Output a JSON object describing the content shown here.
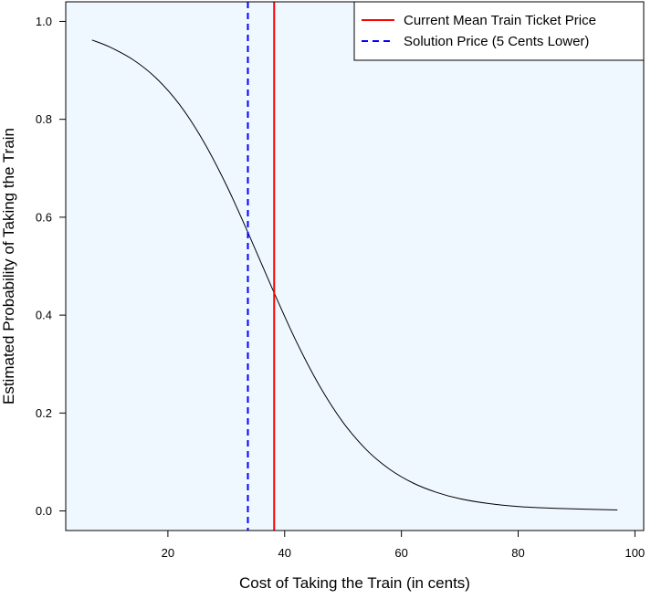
{
  "chart_data": {
    "type": "line",
    "xlabel": "Cost of Taking the Train (in cents)",
    "ylabel": "Estimated Probability of Taking the Train",
    "xlim": [
      2.5,
      101.5
    ],
    "ylim": [
      -0.04,
      1.04
    ],
    "x_ticks": [
      20,
      40,
      60,
      80,
      100
    ],
    "y_ticks": [
      0.0,
      0.2,
      0.4,
      0.6,
      0.8,
      1.0
    ],
    "x_tick_labels": [
      "20",
      "40",
      "60",
      "80",
      "100"
    ],
    "y_tick_labels": [
      "0.0",
      "0.2",
      "0.4",
      "0.6",
      "0.8",
      "1.0"
    ],
    "grid": false,
    "legend_position": "top-right",
    "series": [
      {
        "type": "curve",
        "color": "#000000",
        "x": [
          7,
          10,
          14,
          18,
          22,
          26,
          30,
          34,
          38,
          42,
          46,
          50,
          54,
          58,
          62,
          66,
          70,
          75,
          80,
          85,
          90,
          97
        ],
        "values": [
          0.962,
          0.948,
          0.922,
          0.884,
          0.83,
          0.757,
          0.666,
          0.561,
          0.451,
          0.346,
          0.255,
          0.181,
          0.125,
          0.085,
          0.057,
          0.038,
          0.025,
          0.015,
          0.009,
          0.006,
          0.004,
          0.002
        ]
      },
      {
        "type": "vline",
        "name": "Current Mean Train Ticket Price",
        "x": 38.2,
        "color": "#ff0000",
        "style": "solid"
      },
      {
        "type": "vline",
        "name": "Solution Price (5 Cents Lower)",
        "x": 33.7,
        "color": "#0000ff",
        "style": "dashed"
      }
    ],
    "plot_background": "#f0f8ff"
  }
}
